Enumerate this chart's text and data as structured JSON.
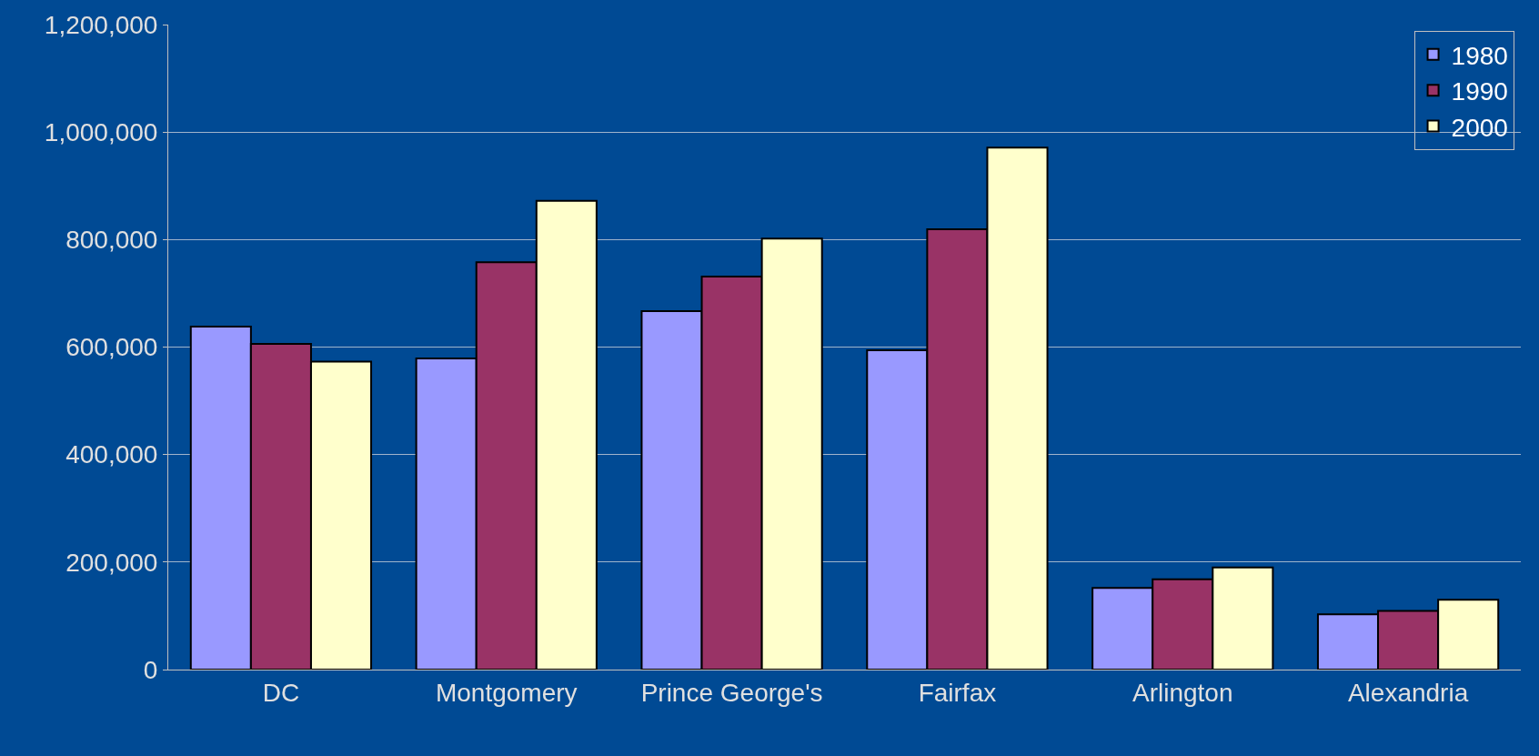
{
  "chart_data": {
    "type": "bar",
    "categories": [
      "DC",
      "Montgomery",
      "Prince George's",
      "Fairfax",
      "Arlington",
      "Alexandria"
    ],
    "series": [
      {
        "name": "1980",
        "color": "#9999ff",
        "values": [
          638000,
          579000,
          667000,
          594000,
          152000,
          103000
        ]
      },
      {
        "name": "1990",
        "color": "#993366",
        "values": [
          606000,
          758000,
          731000,
          819000,
          168000,
          109000
        ]
      },
      {
        "name": "2000",
        "color": "#ffffcc",
        "values": [
          573000,
          872000,
          802000,
          971000,
          190000,
          130000
        ]
      }
    ],
    "ylim": [
      0,
      1200000
    ],
    "yticks": [
      0,
      {
        "value": 200000,
        "label": "200,000"
      },
      {
        "value": 400000,
        "label": "400,000"
      },
      {
        "value": 600000,
        "label": "600,000"
      },
      {
        "value": 800000,
        "label": "800,000"
      },
      {
        "value": 1000000,
        "label": "1,000,000"
      },
      {
        "value": 1200000,
        "label": "1,200,000"
      }
    ],
    "grid": "y",
    "legend": "top right"
  }
}
